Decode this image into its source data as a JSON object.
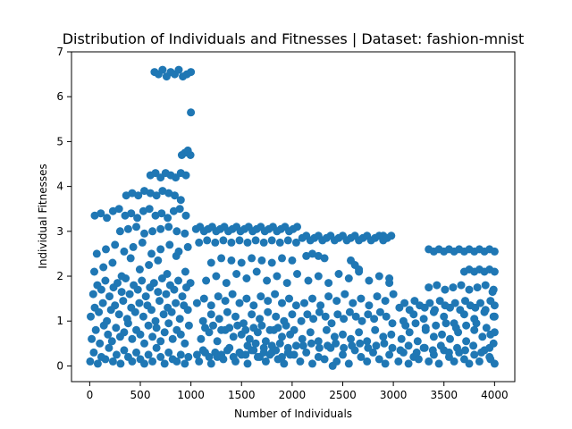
{
  "chart_data": {
    "type": "scatter",
    "title": "Distribution of Individuals and Fitnesses | Dataset: fashion-mnist",
    "xlabel": "Number of Individuals",
    "ylabel": "Individual Fitnesses",
    "xlim": [
      -180,
      4200
    ],
    "ylim": [
      -0.35,
      7.0
    ],
    "xticks": [
      0,
      500,
      1000,
      1500,
      2000,
      2500,
      3000,
      3500,
      4000
    ],
    "yticks": [
      0,
      1,
      2,
      3,
      4,
      5,
      6,
      7
    ],
    "grid": false,
    "marker_color": "#1f77b4",
    "series": [
      {
        "x": [
          5,
          40,
          80,
          115,
          155,
          190,
          230,
          265,
          305,
          340,
          380,
          420,
          460,
          500,
          540,
          580,
          620,
          660,
          700,
          740,
          780,
          820,
          860,
          900,
          940,
          975,
          20,
          60,
          100,
          140,
          180,
          220,
          260,
          300,
          340,
          380,
          420,
          460,
          500,
          540,
          580,
          620,
          660,
          700,
          740,
          780,
          820,
          860,
          900,
          940,
          980,
          10,
          50,
          90,
          130,
          170,
          210,
          250,
          290,
          330,
          370,
          410,
          450,
          490,
          530,
          570,
          610,
          650,
          690,
          730,
          770,
          810,
          850,
          890,
          930,
          970,
          35,
          75,
          115,
          155,
          195,
          235,
          275,
          315,
          355,
          395,
          435,
          475,
          515,
          555,
          595,
          635,
          675,
          715,
          755,
          795,
          835,
          875,
          915,
          955,
          995,
          45,
          135,
          225,
          315,
          405,
          495,
          585,
          675,
          765,
          855,
          945,
          70,
          160,
          250,
          340,
          430,
          520,
          610,
          700,
          790,
          880,
          970,
          50,
          110,
          170,
          230,
          290,
          350,
          410,
          470,
          530,
          590,
          650,
          710,
          770,
          830,
          890,
          950,
          360,
          420,
          480,
          540,
          600,
          660,
          720,
          780,
          840,
          900,
          300,
          380,
          460,
          540,
          620,
          700,
          780,
          860,
          940,
          640,
          680,
          720,
          760,
          800,
          840,
          880,
          920,
          960,
          1000,
          600,
          650,
          700,
          750,
          800,
          850,
          900,
          950,
          910,
          940,
          970,
          995,
          1000,
          1080,
          1140,
          1200,
          1260,
          1320,
          1380,
          1440,
          1500,
          1560,
          1620,
          1680,
          1740,
          1800,
          1860,
          1920,
          1980,
          1100,
          1180,
          1260,
          1340,
          1420,
          1500,
          1580,
          1660,
          1740,
          1820,
          1900,
          1980,
          1120,
          1200,
          1280,
          1360,
          1440,
          1520,
          1600,
          1680,
          1760,
          1840,
          1920,
          2000,
          1060,
          1130,
          1200,
          1270,
          1340,
          1410,
          1480,
          1550,
          1620,
          1690,
          1760,
          1830,
          1900,
          1970,
          2040,
          1150,
          1250,
          1350,
          1450,
          1550,
          1650,
          1750,
          1850,
          1950,
          2050,
          1050,
          1090,
          1130,
          1170,
          1210,
          1250,
          1290,
          1330,
          1370,
          1410,
          1450,
          1490,
          1530,
          1570,
          1610,
          1650,
          1690,
          1730,
          1770,
          1810,
          1850,
          1890,
          1930,
          1970,
          2010,
          2050,
          1080,
          1160,
          1240,
          1320,
          1400,
          1480,
          1560,
          1640,
          1720,
          1800,
          1880,
          1960,
          2040,
          1200,
          1300,
          1400,
          1500,
          1600,
          1700,
          1800,
          1900,
          2000,
          1560,
          1640,
          1720,
          1800,
          1880,
          1960,
          2040,
          1060,
          1120,
          1180,
          1240,
          1300,
          1360,
          1420,
          1480,
          1540,
          1600,
          1660,
          1720,
          1780,
          1840,
          1900,
          1960,
          2020,
          1140,
          1220,
          1300,
          1380,
          1460,
          1540,
          1620,
          1700,
          1780,
          1860,
          1940,
          2020,
          2080,
          2140,
          2200,
          2260,
          2320,
          2380,
          2440,
          2500,
          2560,
          2620,
          2680,
          2740,
          2800,
          2860,
          2920,
          2960,
          2100,
          2180,
          2260,
          2340,
          2420,
          2500,
          2580,
          2660,
          2740,
          2820,
          2900,
          2980,
          2140,
          2200,
          2260,
          2320,
          2090,
          2150,
          2210,
          2270,
          2330,
          2390,
          2450,
          2510,
          2570,
          2630,
          2690,
          2750,
          2810,
          2870,
          2930,
          2990,
          2120,
          2200,
          2280,
          2360,
          2440,
          2520,
          2600,
          2680,
          2760,
          2840,
          2920,
          3000,
          2160,
          2260,
          2360,
          2460,
          2560,
          2660,
          2760,
          2860,
          2960,
          2580,
          2620,
          2660,
          2400,
          2900,
          2960,
          2100,
          2140,
          2180,
          2220,
          2260,
          2300,
          2340,
          2380,
          2420,
          2460,
          2500,
          2540,
          2580,
          2620,
          2660,
          2700,
          2740,
          2780,
          2820,
          2860,
          2900,
          2940,
          2980,
          2110,
          2190,
          2270,
          2350,
          2430,
          2510,
          2590,
          2670,
          2750,
          2830,
          2910,
          2990,
          3050,
          3100,
          3150,
          3200,
          3250,
          3300,
          3350,
          3400,
          3450,
          3500,
          3550,
          3600,
          3650,
          3700,
          3750,
          3800,
          3850,
          3900,
          3950,
          4000,
          3080,
          3160,
          3240,
          3320,
          3400,
          3480,
          3560,
          3640,
          3720,
          3800,
          3880,
          3960,
          3100,
          3200,
          3300,
          3400,
          3500,
          3600,
          3700,
          3800,
          3900,
          4000,
          3350,
          3400,
          3450,
          3500,
          3550,
          3600,
          3650,
          3700,
          3750,
          3800,
          3850,
          3900,
          3950,
          4000,
          3350,
          3430,
          3510,
          3590,
          3670,
          3750,
          3830,
          3910,
          3990,
          3700,
          3750,
          3800,
          3850,
          3900,
          3950,
          4000,
          3060,
          3110,
          3160,
          3210,
          3260,
          3310,
          3360,
          3410,
          3460,
          3510,
          3560,
          3610,
          3660,
          3710,
          3760,
          3810,
          3860,
          3910,
          3960,
          4000,
          3070,
          3150,
          3230,
          3310,
          3390,
          3470,
          3550,
          3630,
          3710,
          3790,
          3870,
          3950,
          3120,
          3220,
          3320,
          3420,
          3520,
          3620,
          3720,
          3820,
          3920,
          3980,
          3990,
          4000,
          3990,
          3960
        ],
        "y": [
          0.1,
          0.3,
          0.05,
          0.2,
          0.15,
          0.4,
          0.1,
          0.25,
          0.05,
          0.35,
          0.2,
          0.1,
          0.3,
          0.15,
          0.05,
          0.25,
          0.1,
          0.4,
          0.2,
          0.05,
          0.3,
          0.15,
          0.1,
          0.25,
          0.05,
          0.2,
          0.6,
          0.8,
          0.5,
          0.9,
          0.7,
          0.55,
          0.85,
          0.65,
          0.75,
          0.95,
          0.6,
          0.8,
          0.7,
          0.5,
          0.9,
          0.65,
          0.85,
          0.55,
          0.75,
          0.95,
          0.6,
          0.8,
          0.7,
          0.5,
          0.9,
          1.1,
          1.3,
          1.2,
          1.4,
          1.0,
          1.25,
          1.35,
          1.15,
          1.45,
          1.05,
          1.3,
          1.2,
          1.4,
          1.1,
          1.35,
          1.25,
          1.0,
          1.45,
          1.15,
          1.3,
          1.2,
          1.4,
          1.05,
          1.35,
          1.25,
          1.6,
          1.8,
          1.7,
          1.9,
          1.55,
          1.75,
          1.85,
          1.65,
          1.95,
          1.6,
          1.8,
          1.7,
          1.9,
          1.55,
          1.75,
          1.85,
          1.65,
          1.95,
          1.6,
          1.8,
          1.7,
          1.9,
          1.55,
          1.75,
          1.85,
          2.1,
          2.2,
          2.3,
          2.0,
          2.4,
          2.15,
          2.25,
          2.35,
          2.05,
          2.45,
          2.1,
          2.5,
          2.6,
          2.7,
          2.55,
          2.65,
          2.75,
          2.5,
          2.6,
          2.7,
          2.55,
          2.65,
          3.35,
          3.4,
          3.3,
          3.45,
          3.5,
          3.35,
          3.4,
          3.3,
          3.45,
          3.5,
          3.35,
          3.4,
          3.3,
          3.45,
          3.5,
          3.35,
          3.8,
          3.85,
          3.8,
          3.9,
          3.85,
          3.8,
          3.9,
          3.85,
          3.8,
          3.7,
          3.0,
          3.05,
          3.1,
          2.95,
          3.0,
          3.05,
          3.1,
          3.0,
          2.95,
          6.55,
          6.5,
          6.6,
          6.45,
          6.55,
          6.5,
          6.6,
          6.45,
          6.5,
          6.55,
          4.25,
          4.3,
          4.2,
          4.3,
          4.25,
          4.2,
          4.3,
          4.25,
          4.7,
          4.75,
          4.8,
          4.7,
          5.65,
          0.1,
          0.3,
          0.05,
          0.2,
          0.15,
          0.4,
          0.1,
          0.25,
          0.05,
          0.35,
          0.2,
          0.1,
          0.3,
          0.15,
          0.05,
          0.25,
          0.6,
          0.75,
          0.55,
          0.8,
          0.65,
          0.7,
          0.6,
          0.75,
          0.55,
          0.8,
          0.65,
          0.7,
          1.0,
          1.15,
          1.05,
          1.2,
          1.1,
          0.95,
          1.15,
          1.05,
          1.2,
          1.1,
          1.0,
          1.15,
          1.4,
          1.5,
          1.35,
          1.55,
          1.45,
          1.6,
          1.4,
          1.5,
          1.35,
          1.55,
          1.45,
          1.6,
          1.4,
          1.5,
          1.35,
          1.9,
          2.0,
          1.85,
          2.05,
          1.95,
          2.1,
          1.9,
          2.0,
          1.85,
          2.05,
          3.05,
          3.1,
          3.0,
          3.05,
          3.1,
          3.0,
          3.05,
          3.1,
          3.0,
          3.05,
          3.1,
          3.0,
          3.05,
          3.1,
          3.0,
          3.05,
          3.1,
          3.0,
          3.05,
          3.1,
          3.0,
          3.05,
          3.1,
          3.0,
          3.05,
          3.1,
          2.75,
          2.8,
          2.75,
          2.8,
          2.75,
          2.8,
          2.75,
          2.8,
          2.75,
          2.8,
          2.75,
          2.8,
          2.75,
          2.3,
          2.4,
          2.35,
          2.3,
          2.4,
          2.35,
          2.3,
          2.4,
          2.35,
          0.45,
          0.5,
          0.4,
          0.45,
          0.5,
          0.4,
          0.45,
          0.25,
          0.35,
          0.2,
          0.3,
          0.25,
          0.35,
          0.2,
          0.3,
          0.25,
          0.35,
          0.2,
          0.3,
          0.25,
          0.35,
          0.2,
          0.3,
          0.25,
          0.85,
          0.9,
          0.8,
          0.85,
          0.9,
          0.8,
          0.85,
          0.9,
          0.8,
          0.85,
          0.9,
          0.8,
          0.1,
          0.3,
          0.05,
          0.2,
          0.15,
          0.4,
          0.1,
          0.25,
          0.05,
          0.35,
          0.2,
          0.1,
          0.3,
          0.15,
          0.05,
          0.25,
          0.6,
          0.75,
          0.55,
          0.8,
          0.65,
          0.7,
          0.6,
          0.75,
          0.55,
          0.8,
          0.65,
          0.7,
          2.45,
          2.5,
          2.45,
          2.4,
          1.0,
          1.15,
          1.05,
          1.2,
          1.1,
          0.95,
          1.15,
          1.05,
          1.2,
          1.1,
          1.0,
          1.15,
          1.05,
          1.2,
          1.1,
          0.95,
          1.4,
          1.5,
          1.35,
          1.55,
          1.45,
          1.6,
          1.4,
          1.5,
          1.35,
          1.55,
          1.45,
          1.6,
          1.9,
          2.0,
          1.85,
          2.05,
          1.95,
          2.1,
          1.9,
          2.0,
          1.85,
          2.35,
          2.25,
          2.15,
          0.0,
          2.9,
          1.95,
          2.85,
          2.9,
          2.8,
          2.85,
          2.9,
          2.8,
          2.85,
          2.9,
          2.8,
          2.85,
          2.9,
          2.8,
          2.85,
          2.9,
          2.8,
          2.85,
          2.9,
          2.8,
          2.85,
          2.9,
          2.8,
          2.85,
          2.9,
          0.45,
          0.5,
          0.4,
          0.45,
          0.5,
          0.4,
          0.45,
          0.5,
          0.4,
          0.45,
          0.5,
          0.4,
          0.1,
          0.3,
          0.05,
          0.2,
          0.15,
          0.4,
          0.1,
          0.25,
          0.05,
          0.35,
          0.2,
          0.1,
          0.3,
          0.15,
          0.05,
          0.25,
          0.1,
          0.35,
          0.2,
          0.05,
          0.6,
          0.75,
          0.55,
          0.8,
          0.65,
          0.7,
          0.6,
          0.75,
          0.55,
          0.8,
          0.65,
          0.7,
          1.0,
          1.15,
          1.05,
          1.2,
          1.1,
          0.95,
          1.15,
          1.05,
          1.2,
          1.1,
          2.6,
          2.55,
          2.6,
          2.55,
          2.6,
          2.55,
          2.6,
          2.55,
          2.6,
          2.55,
          2.6,
          2.55,
          2.6,
          2.55,
          1.75,
          1.8,
          1.7,
          1.75,
          1.8,
          1.7,
          1.75,
          1.8,
          1.7,
          2.1,
          2.15,
          2.1,
          2.15,
          2.1,
          2.15,
          2.1,
          1.3,
          1.4,
          1.25,
          1.45,
          1.35,
          1.3,
          1.4,
          1.25,
          1.45,
          1.35,
          1.3,
          1.4,
          1.25,
          1.45,
          1.35,
          1.3,
          1.4,
          1.25,
          1.45,
          1.35,
          0.35,
          0.45,
          0.3,
          0.4,
          0.35,
          0.45,
          0.3,
          0.4,
          0.35,
          0.45,
          0.3,
          0.4,
          0.9,
          0.95,
          0.85,
          0.9,
          0.95,
          0.85,
          0.9,
          0.95,
          0.85,
          1.65,
          1.1,
          0.75,
          0.5,
          0.15
        ]
      }
    ]
  }
}
